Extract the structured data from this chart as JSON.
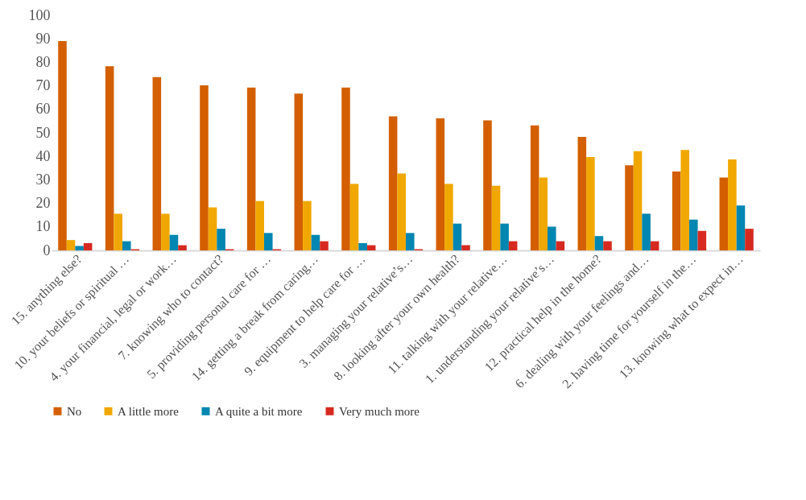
{
  "chart_data": {
    "type": "bar",
    "categories": [
      "15. anything else?",
      "10. your beliefs or spiritual …",
      "4. your financial, legal or work…",
      "7. knowing who to contact?",
      "5. providing personal care for …",
      "14. getting a break from caring…",
      "9. equipment to help care for …",
      "3. managing your relative’s…",
      "8. looking after your own health?",
      "11. talking with your relative…",
      "1. understanding your relative’s…",
      "12. practical help in the home?",
      "6. dealing with your feelings and…",
      "2. having time for yourself in the…",
      "13. knowing what to expect in…"
    ],
    "series": [
      {
        "name": "No",
        "color": "#d35f00",
        "values": [
          89,
          78.3,
          73.7,
          70.2,
          69.3,
          66.7,
          69.3,
          57,
          56.2,
          55.3,
          53.2,
          48.3,
          36.2,
          33.6,
          31
        ]
      },
      {
        "name": "A little more",
        "color": "#f0a800",
        "values": [
          4.4,
          15.6,
          15.6,
          18.3,
          21,
          21,
          28.3,
          32.7,
          28.3,
          27.5,
          31,
          39.7,
          42.2,
          42.7,
          38.7
        ]
      },
      {
        "name": "A quite a bit more",
        "color": "#0086b0",
        "values": [
          1.9,
          3.9,
          6.6,
          9.2,
          7.4,
          6.6,
          3.1,
          7.4,
          11.4,
          11.4,
          10.1,
          6.1,
          15.6,
          13.1,
          19.1
        ]
      },
      {
        "name": "Very much more",
        "color": "#d62a20",
        "values": [
          3.1,
          0.5,
          2.2,
          0.5,
          0.5,
          3.9,
          2.2,
          0.5,
          2.2,
          3.9,
          3.9,
          3.9,
          3.9,
          8.3,
          9.2
        ]
      }
    ],
    "ylim": [
      0,
      100
    ],
    "yticks": [
      0,
      10,
      20,
      30,
      40,
      50,
      60,
      70,
      80,
      90,
      100
    ],
    "grid": false,
    "legend": "bottom"
  }
}
